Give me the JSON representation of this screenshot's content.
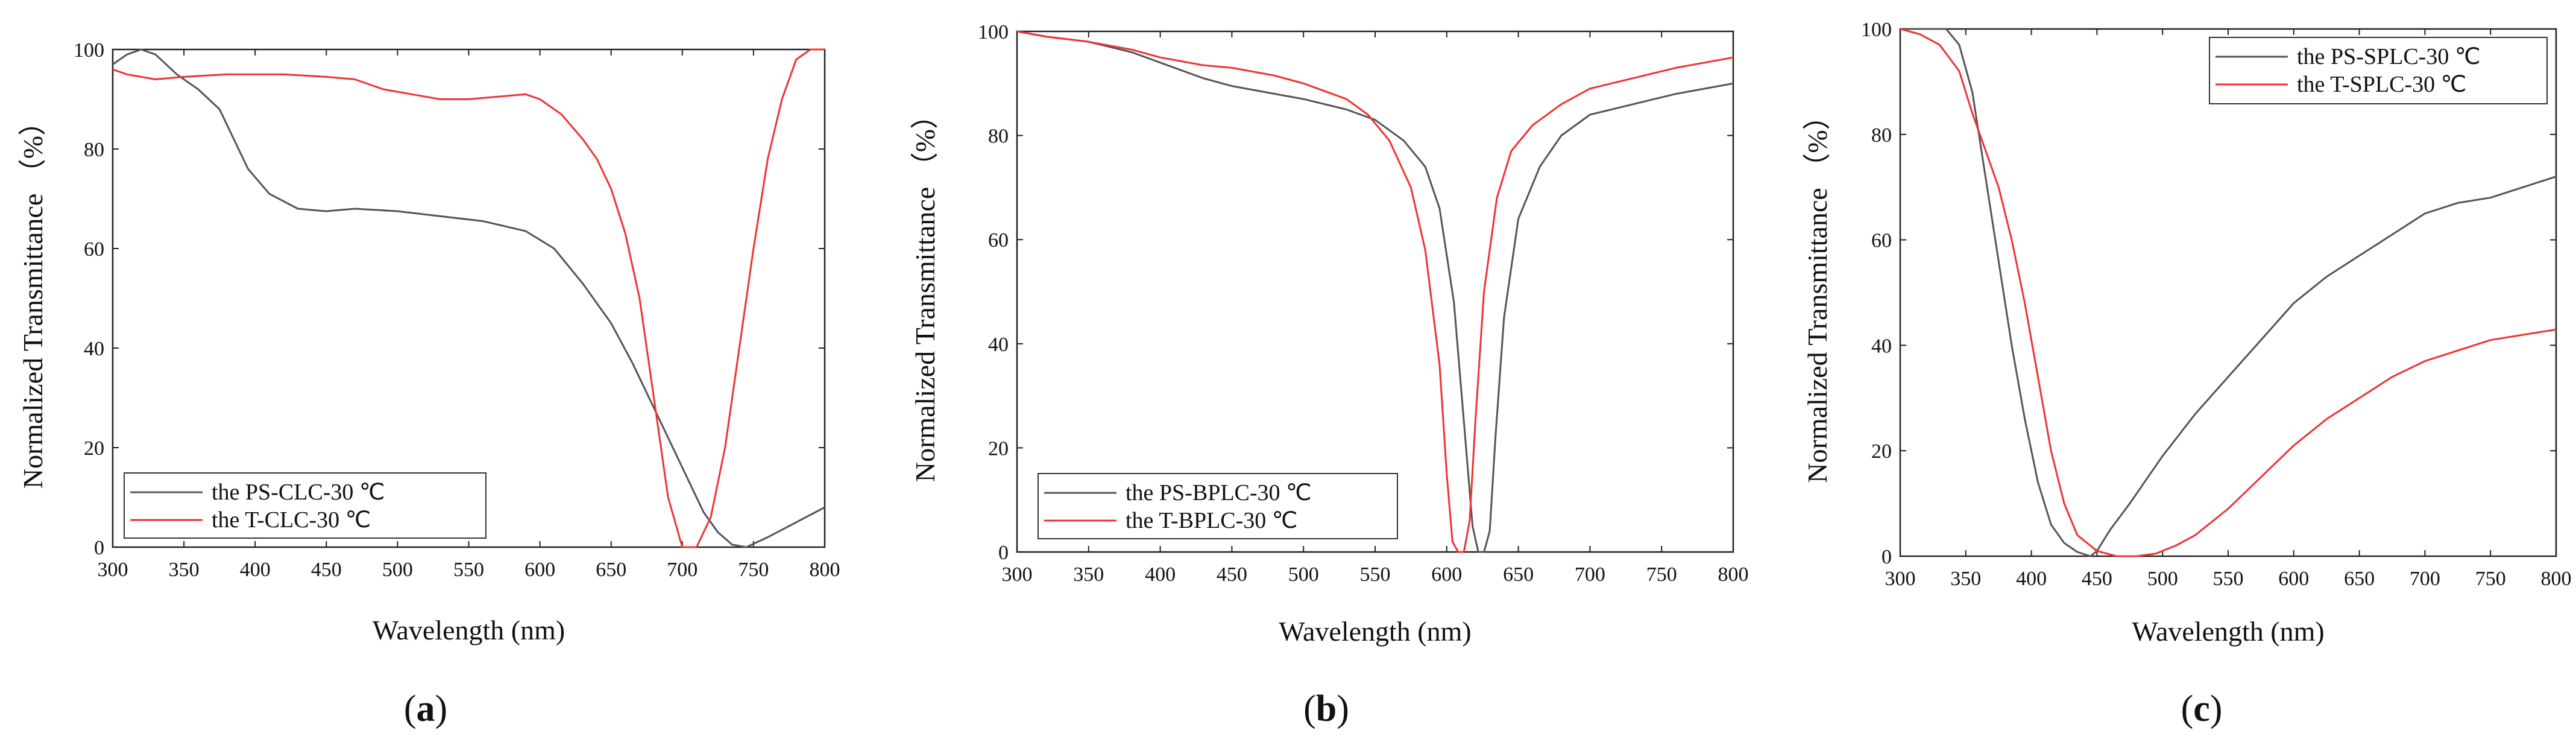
{
  "chart_data": [
    {
      "type": "line",
      "panel_label": "a",
      "title": "",
      "xlabel": "Wavelength (nm)",
      "ylabel": "Normalized Transmittance （%）",
      "xlim": [
        300,
        800
      ],
      "ylim": [
        0,
        100
      ],
      "xticks": [
        300,
        350,
        400,
        450,
        500,
        550,
        600,
        650,
        700,
        750,
        800
      ],
      "yticks": [
        0,
        20,
        40,
        60,
        80,
        100
      ],
      "legend_position": "bottom-left",
      "series": [
        {
          "name": "the PS-CLC-30 ℃",
          "color": "#555555",
          "x": [
            300,
            310,
            320,
            330,
            345,
            360,
            375,
            385,
            395,
            410,
            430,
            450,
            470,
            500,
            530,
            560,
            590,
            610,
            630,
            650,
            665,
            680,
            700,
            715,
            725,
            735,
            745,
            760,
            780,
            800
          ],
          "y": [
            97,
            99,
            100,
            99,
            95,
            92,
            88,
            82,
            76,
            71,
            68,
            67.5,
            68,
            67.5,
            66.5,
            65.5,
            63.5,
            60,
            53,
            45,
            37,
            28,
            16,
            7,
            3,
            0.5,
            0,
            2,
            5,
            8
          ]
        },
        {
          "name": "the T-CLC-30 ℃",
          "color": "#ee3333",
          "x": [
            300,
            310,
            330,
            350,
            380,
            420,
            450,
            470,
            490,
            510,
            530,
            550,
            570,
            590,
            600,
            615,
            630,
            640,
            650,
            660,
            670,
            680,
            690,
            700,
            710,
            720,
            730,
            740,
            750,
            760,
            770,
            780,
            790,
            800
          ],
          "y": [
            96,
            95,
            94,
            94.5,
            95,
            95,
            94.5,
            94,
            92,
            91,
            90,
            90,
            90.5,
            91,
            90,
            87,
            82,
            78,
            72,
            63,
            50,
            30,
            10,
            0,
            0,
            6,
            20,
            40,
            60,
            78,
            90,
            98,
            100,
            100
          ]
        }
      ]
    },
    {
      "type": "line",
      "panel_label": "b",
      "title": "",
      "xlabel": "Wavelength (nm)",
      "ylabel": "Normalized Transmittance （%）",
      "xlim": [
        300,
        800
      ],
      "ylim": [
        0,
        100
      ],
      "xticks": [
        300,
        350,
        400,
        450,
        500,
        550,
        600,
        650,
        700,
        750,
        800
      ],
      "yticks": [
        0,
        20,
        40,
        60,
        80,
        100
      ],
      "legend_position": "bottom-left",
      "series": [
        {
          "name": "the PS-BPLC-30 ℃",
          "color": "#555555",
          "x": [
            300,
            320,
            350,
            380,
            400,
            430,
            450,
            480,
            500,
            530,
            550,
            570,
            585,
            595,
            605,
            612,
            618,
            622,
            626,
            630,
            634,
            640,
            650,
            665,
            680,
            700,
            730,
            760,
            800
          ],
          "y": [
            100,
            99,
            98,
            96,
            94,
            91,
            89.5,
            88,
            87,
            85,
            83,
            79,
            74,
            66,
            48,
            25,
            5,
            0,
            0,
            4,
            22,
            45,
            64,
            74,
            80,
            84,
            86,
            88,
            90
          ]
        },
        {
          "name": "the T-BPLC-30 ℃",
          "color": "#ee3333",
          "x": [
            300,
            320,
            350,
            380,
            400,
            430,
            450,
            480,
            500,
            530,
            545,
            560,
            575,
            585,
            595,
            600,
            604,
            608,
            612,
            616,
            620,
            626,
            635,
            645,
            660,
            680,
            700,
            730,
            760,
            800
          ],
          "y": [
            100,
            99,
            98,
            96.5,
            95,
            93.5,
            93,
            91.5,
            90,
            87,
            84,
            79,
            70,
            58,
            36,
            15,
            2,
            0,
            0,
            6,
            25,
            50,
            68,
            77,
            82,
            86,
            89,
            91,
            93,
            95
          ]
        }
      ]
    },
    {
      "type": "line",
      "panel_label": "c",
      "title": "",
      "xlabel": "Wavelength (nm)",
      "ylabel": "Normalized Transmittance （%）",
      "xlim": [
        300,
        800
      ],
      "ylim": [
        0,
        100
      ],
      "xticks": [
        300,
        350,
        400,
        450,
        500,
        550,
        600,
        650,
        700,
        750,
        800
      ],
      "yticks": [
        0,
        20,
        40,
        60,
        80,
        100
      ],
      "legend_position": "top-right",
      "series": [
        {
          "name": "the PS-SPLC-30 ℃",
          "color": "#555555",
          "x": [
            300,
            320,
            335,
            345,
            355,
            365,
            375,
            385,
            395,
            405,
            415,
            425,
            435,
            445,
            450,
            460,
            475,
            500,
            525,
            550,
            575,
            600,
            625,
            650,
            675,
            700,
            725,
            750,
            775,
            800
          ],
          "y": [
            100,
            100,
            100,
            97,
            88,
            72,
            56,
            40,
            26,
            14,
            6,
            2.5,
            0.8,
            0,
            1,
            5,
            10,
            19,
            27,
            34,
            41,
            48,
            53,
            57,
            61,
            65,
            67,
            68,
            70,
            72
          ]
        },
        {
          "name": "the T-SPLC-30 ℃",
          "color": "#ee3333",
          "x": [
            300,
            315,
            330,
            345,
            355,
            365,
            375,
            385,
            395,
            405,
            415,
            425,
            435,
            450,
            465,
            480,
            495,
            510,
            525,
            550,
            575,
            600,
            625,
            650,
            675,
            700,
            725,
            750,
            775,
            800
          ],
          "y": [
            100,
            99,
            97,
            92,
            84,
            77,
            70,
            60,
            48,
            34,
            20,
            10,
            4,
            1,
            0,
            0,
            0.5,
            2,
            4,
            9,
            15,
            21,
            26,
            30,
            34,
            37,
            39,
            41,
            42,
            43
          ]
        }
      ]
    }
  ]
}
